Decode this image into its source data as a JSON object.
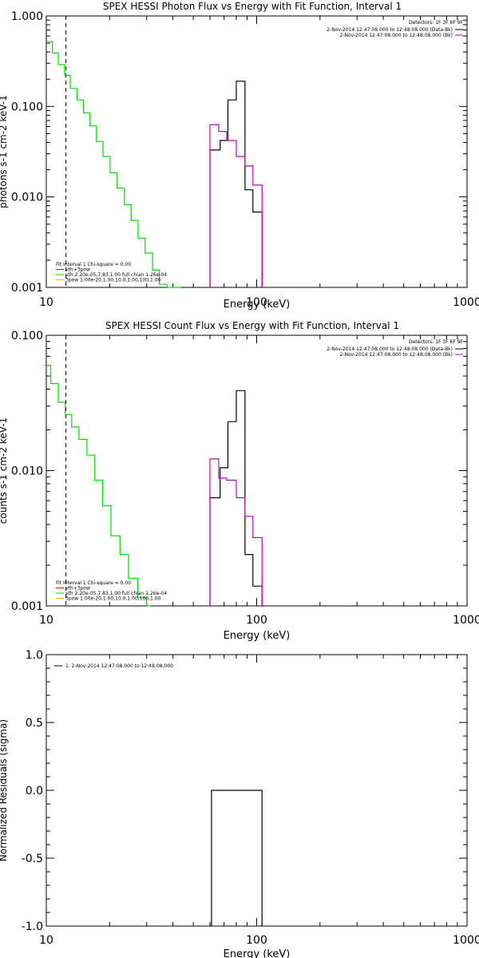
{
  "chart_data": [
    {
      "type": "line",
      "title": "SPEX HESSI Photon Flux vs Energy with Fit Function, Interval 1",
      "xlabel": "Energy (keV)",
      "ylabel": "photons s-1 cm-2 keV-1",
      "xscale": "log",
      "yscale": "log",
      "xlim": [
        10,
        1000
      ],
      "ylim": [
        0.001,
        1.0
      ],
      "xticks": [
        "10",
        "100",
        "1000"
      ],
      "yticks": [
        "0.001",
        "0.010",
        "0.100",
        "1.000"
      ],
      "fit_start_energy": 12.4,
      "detectors": "Detectors: 1F 3F 6F 9F",
      "legend_top": [
        {
          "label": "2-Nov-2014 12:47:08.000 to 12:48:08.000 (Data-Bk)",
          "color": "#000000"
        },
        {
          "label": "2-Nov-2014 12:47:08.000 to 12:48:08.000 (Bk)",
          "color": "#c000c0"
        }
      ],
      "legend_bottom": [
        {
          "label": "Fit Interval 1   Chi-square = 0.00",
          "color": null
        },
        {
          "label": "vth+3pow",
          "color": "#ff0000"
        },
        {
          "label": "vth 2.20e-05,7.83,1.00  full chian 1.26e-04",
          "color": "#00cc00"
        },
        {
          "label": "3pow 1.00e-20,1.00,10.0,1.00,100,1.00",
          "color": "#ffaa00"
        }
      ],
      "series": [
        {
          "name": "vth",
          "color": "#00dd00",
          "edges": [
            10,
            10.7,
            11.4,
            12.2,
            13.0,
            14.0,
            15.0,
            16.1,
            17.3,
            18.6,
            20.1,
            21.7,
            23.5,
            25.3,
            27.3,
            29.5,
            32.0,
            34.5,
            37.5,
            40.5,
            43.5
          ],
          "values": [
            0.52,
            0.39,
            0.29,
            0.22,
            0.158,
            0.118,
            0.085,
            0.061,
            0.041,
            0.028,
            0.0185,
            0.0125,
            0.0082,
            0.0055,
            0.0035,
            0.0024,
            0.00155,
            0.00108,
            0.001,
            0.001
          ]
        },
        {
          "name": "Data-Bk",
          "color": "#000000",
          "edges": [
            60,
            67,
            73,
            80,
            88,
            96,
            106
          ],
          "values": [
            0.033,
            0.042,
            0.118,
            0.19,
            0.012,
            0.0068
          ]
        },
        {
          "name": "Bk",
          "color": "#c000c0",
          "edges": [
            60,
            66,
            72,
            80,
            88,
            96,
            106
          ],
          "values": [
            0.063,
            0.053,
            0.042,
            0.028,
            0.022,
            0.0135
          ]
        }
      ]
    },
    {
      "type": "line",
      "title": "SPEX HESSI Count Flux vs Energy with Fit Function, Interval 1",
      "xlabel": "Energy (keV)",
      "ylabel": "counts s-1 cm-2 keV-1",
      "xscale": "log",
      "yscale": "log",
      "xlim": [
        10,
        1000
      ],
      "ylim": [
        0.001,
        0.1
      ],
      "xticks": [
        "10",
        "100",
        "1000"
      ],
      "yticks": [
        "0.001",
        "0.010",
        "0.100"
      ],
      "fit_start_energy": 12.4,
      "detectors": "Detectors: 1F 3F 6F 9F",
      "legend_top": [
        {
          "label": "2-Nov-2014 12:47:08.000 to 12:48:08.000 (Data-Bk)",
          "color": "#000000"
        },
        {
          "label": "2-Nov-2014 12:47:08.000 to 12:48:08.000 (Bk)",
          "color": "#c000c0"
        }
      ],
      "legend_bottom": [
        {
          "label": "Fit Interval 1   Chi-square = 0.00",
          "color": null
        },
        {
          "label": "vth+3pow",
          "color": "#ff0000"
        },
        {
          "label": "vth 2.20e-05,7.83,1.00  full chian 1.26e-04",
          "color": "#00cc00"
        },
        {
          "label": "3pow 1.00e-20,1.00,10.0,1.00,100,1.00",
          "color": "#ffaa00"
        }
      ],
      "series": [
        {
          "name": "vth",
          "color": "#00dd00",
          "edges": [
            9.8,
            10.5,
            11.4,
            12.3,
            13.2,
            14.3,
            15.6,
            17.0,
            18.5,
            20.3,
            22.4,
            24.6,
            27.2,
            30.0,
            31.5
          ],
          "values": [
            0.06,
            0.044,
            0.032,
            0.026,
            0.021,
            0.017,
            0.013,
            0.0085,
            0.0055,
            0.0033,
            0.0024,
            0.0016,
            0.00115,
            0.001
          ]
        },
        {
          "name": "Data-Bk",
          "color": "#000000",
          "edges": [
            60,
            67,
            73,
            80,
            88,
            96,
            106
          ],
          "values": [
            0.0063,
            0.0105,
            0.023,
            0.039,
            0.0024,
            0.0014
          ]
        },
        {
          "name": "Bk",
          "color": "#c000c0",
          "edges": [
            60,
            66,
            72,
            80,
            88,
            96,
            106
          ],
          "values": [
            0.0122,
            0.0088,
            0.0085,
            0.0063,
            0.0046,
            0.0032
          ]
        }
      ]
    },
    {
      "type": "line",
      "title": "",
      "xlabel": "Energy (keV)",
      "ylabel": "Normalized Residuals (sigma)",
      "xscale": "log",
      "yscale": "linear",
      "xlim": [
        10,
        1000
      ],
      "ylim": [
        -1.0,
        1.0
      ],
      "xticks": [
        "10",
        "100",
        "1000"
      ],
      "yticks": [
        "-1.0",
        "-0.5",
        "0.0",
        "0.5",
        "1.0"
      ],
      "legend_top": [
        {
          "label": "1.  2-Nov-2014 12:47:08.000 to 12:48:08.000",
          "color": "#000000"
        }
      ],
      "series": [
        {
          "name": "residuals",
          "color": "#000000",
          "edges": [
            61,
            106
          ],
          "values": [
            0.0
          ]
        }
      ]
    }
  ]
}
